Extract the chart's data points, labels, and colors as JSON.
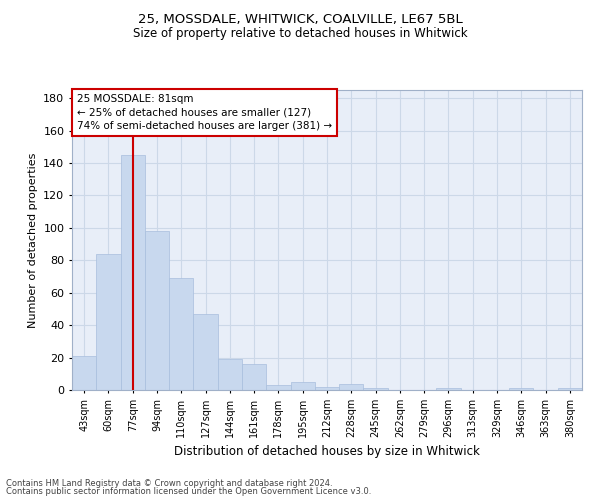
{
  "title1": "25, MOSSDALE, WHITWICK, COALVILLE, LE67 5BL",
  "title2": "Size of property relative to detached houses in Whitwick",
  "xlabel": "Distribution of detached houses by size in Whitwick",
  "ylabel": "Number of detached properties",
  "footer1": "Contains HM Land Registry data © Crown copyright and database right 2024.",
  "footer2": "Contains public sector information licensed under the Open Government Licence v3.0.",
  "bar_color": "#c8d8ee",
  "bar_edge_color": "#a8bedd",
  "categories": [
    "43sqm",
    "60sqm",
    "77sqm",
    "94sqm",
    "110sqm",
    "127sqm",
    "144sqm",
    "161sqm",
    "178sqm",
    "195sqm",
    "212sqm",
    "228sqm",
    "245sqm",
    "262sqm",
    "279sqm",
    "296sqm",
    "313sqm",
    "329sqm",
    "346sqm",
    "363sqm",
    "380sqm"
  ],
  "values": [
    21,
    84,
    145,
    98,
    69,
    47,
    19,
    16,
    3,
    5,
    2,
    4,
    1,
    0,
    0,
    1,
    0,
    0,
    1,
    0,
    1
  ],
  "red_line_index": 2,
  "annotation_title": "25 MOSSDALE: 81sqm",
  "annotation_line1": "← 25% of detached houses are smaller (127)",
  "annotation_line2": "74% of semi-detached houses are larger (381) →",
  "annotation_box_color": "#ffffff",
  "annotation_box_edge": "#cc0000",
  "red_line_color": "#cc0000",
  "grid_color": "#ccd8e8",
  "bg_color": "#e8eef8",
  "ylim": [
    0,
    185
  ],
  "yticks": [
    0,
    20,
    40,
    60,
    80,
    100,
    120,
    140,
    160,
    180
  ],
  "title1_fontsize": 9.5,
  "title2_fontsize": 8.5,
  "ylabel_fontsize": 8,
  "xlabel_fontsize": 8.5,
  "xtick_fontsize": 7,
  "ytick_fontsize": 8,
  "footer_fontsize": 6.0
}
